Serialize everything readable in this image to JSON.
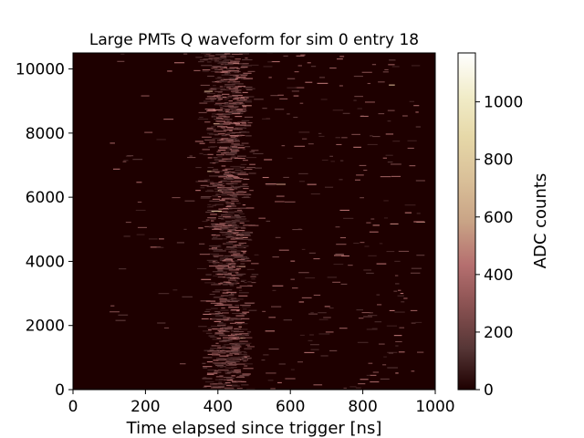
{
  "chart_data": {
    "type": "heatmap",
    "title": "Large PMTs Q waveform for sim 0 entry 18",
    "xlabel": "Time elapsed since trigger [ns]",
    "ylabel": "",
    "xlim": [
      0,
      1000
    ],
    "ylim": [
      0,
      10500
    ],
    "xticks": [
      "0",
      "200",
      "400",
      "600",
      "800",
      "1000"
    ],
    "yticks": [
      "0",
      "2000",
      "4000",
      "6000",
      "8000",
      "10000"
    ],
    "colorbar": {
      "label": "ADC counts",
      "range": [
        0,
        1170
      ],
      "ticks": [
        "0",
        "200",
        "400",
        "600",
        "800",
        "1000"
      ]
    },
    "colormap": "pink",
    "background_color": "#1e0000",
    "signal_profile": {
      "peak_time_ns": 420,
      "main_band_ns": [
        330,
        520
      ],
      "tail_extent_ns": 950,
      "typical_adc": [
        80,
        450
      ],
      "max_adc": 1170
    },
    "grid": false
  }
}
